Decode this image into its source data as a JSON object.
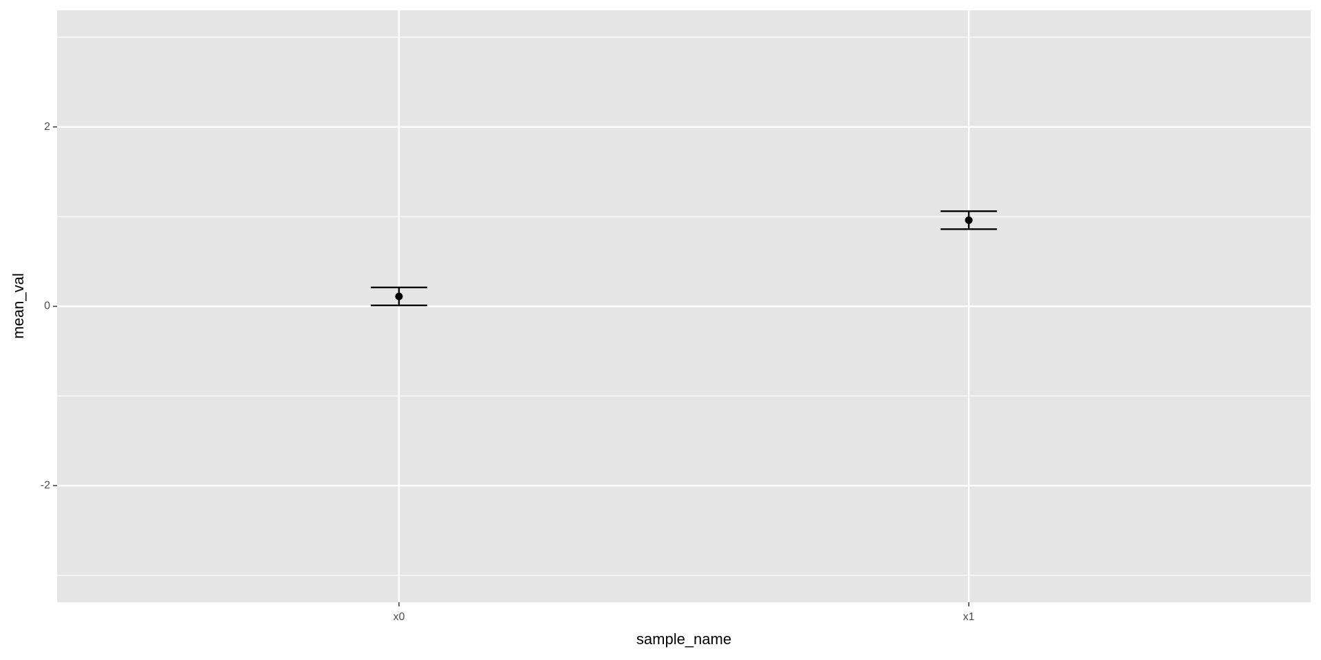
{
  "chart_data": {
    "type": "errorbar",
    "x_label": "sample_name",
    "y_label": "mean_val",
    "categories": [
      "x0",
      "x1"
    ],
    "values": [
      0.11,
      0.96
    ],
    "errors": [
      0.1,
      0.1
    ],
    "color": "#000000",
    "ylim": [
      -3.3,
      3.3
    ],
    "yticks": [
      -2,
      0,
      2
    ],
    "y_minor_ticks": [
      -3,
      -1,
      1,
      3
    ],
    "grid": true
  }
}
